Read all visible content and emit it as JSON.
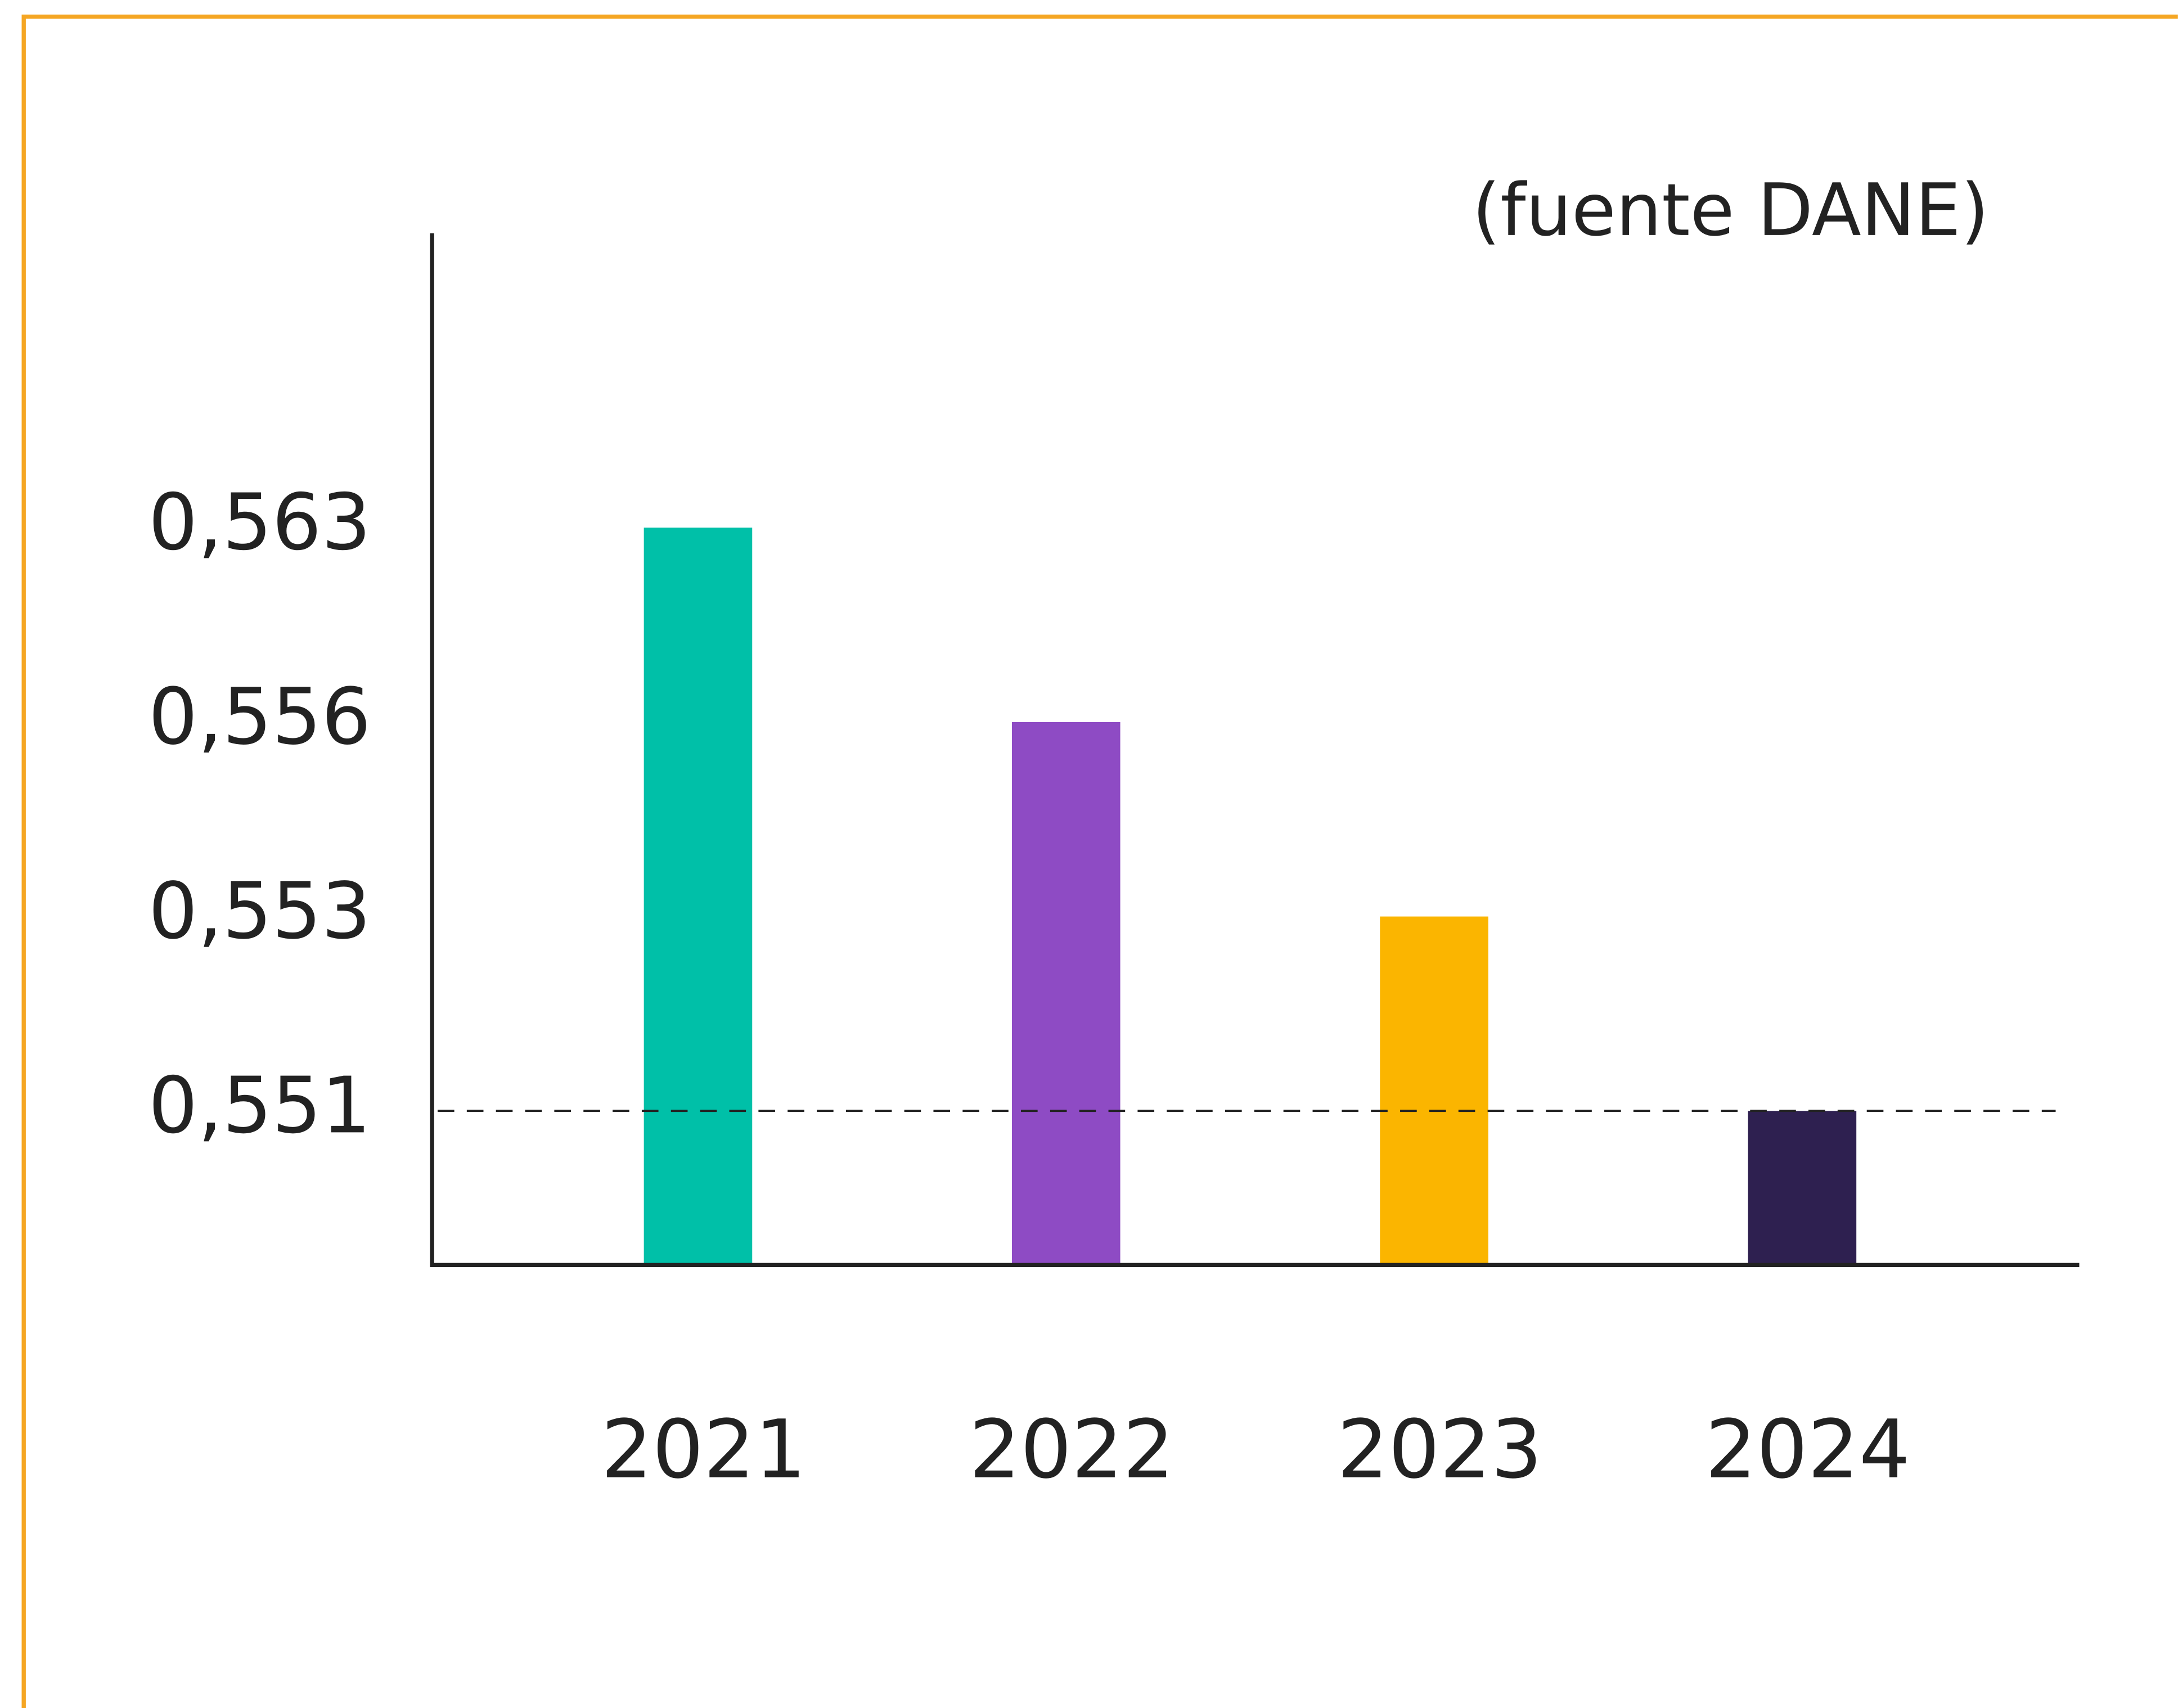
{
  "chart_data": {
    "type": "bar",
    "subtitle": "(fuente DANE)",
    "categories": [
      "2021",
      "2022",
      "2023",
      "2024"
    ],
    "values": [
      0.563,
      0.556,
      0.553,
      0.551
    ],
    "colors": [
      "#00c0a8",
      "#8e4bc4",
      "#fbb500",
      "#2e2050"
    ],
    "ylim": [
      0.549,
      0.574
    ],
    "yticks": [
      {
        "value": 0.551,
        "label": "0,551"
      },
      {
        "value": 0.553,
        "label": "0,553"
      },
      {
        "value": 0.556,
        "label": "0,556"
      },
      {
        "value": 0.563,
        "label": "0,563"
      }
    ],
    "reference_line": 0.551,
    "grid": false
  }
}
